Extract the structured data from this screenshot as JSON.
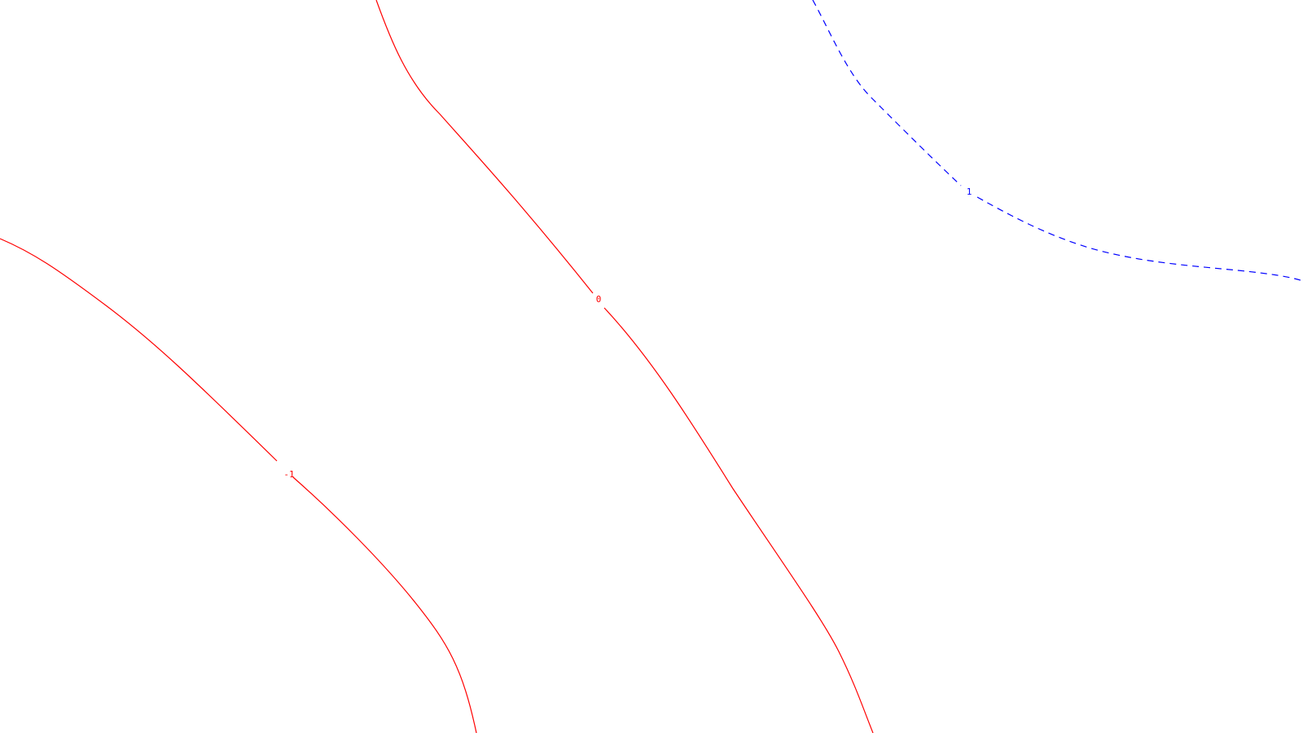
{
  "contours": {
    "minus_one": {
      "label": "-1",
      "color": "#ff0000",
      "style": "solid"
    },
    "zero": {
      "label": "0",
      "color": "#ff0000",
      "style": "solid"
    },
    "one": {
      "label": "1",
      "color": "#0000ff",
      "style": "dashed"
    }
  }
}
